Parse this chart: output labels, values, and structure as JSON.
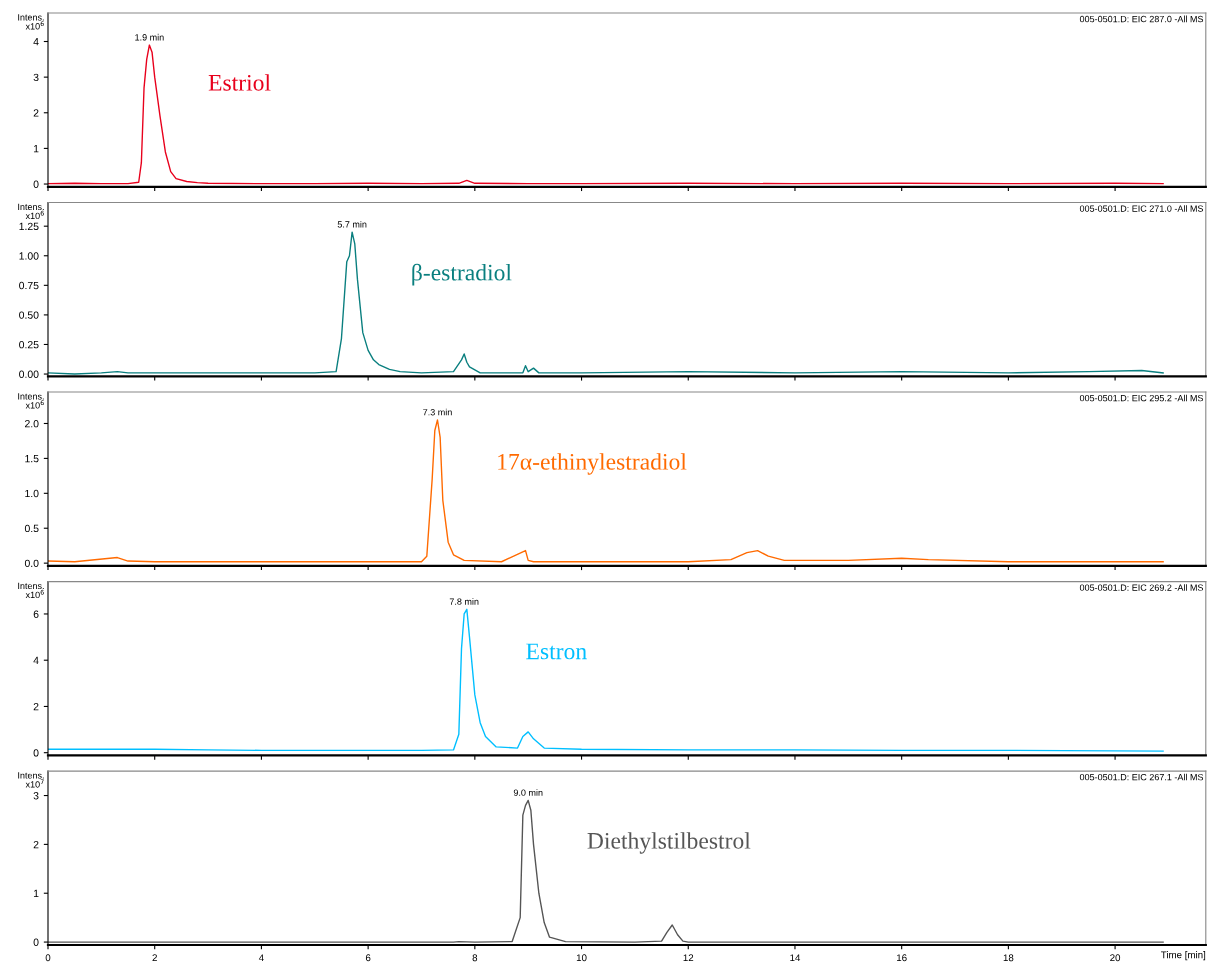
{
  "chart_data": [
    {
      "type": "line",
      "ylabel": "Intens.\nx10$^{6}$",
      "xlim": [
        0,
        21.7
      ],
      "xticks": [
        0,
        2,
        4,
        6,
        8,
        10,
        12,
        14,
        16,
        18,
        20
      ],
      "ylim": [
        -0.08,
        4.8
      ],
      "yticks": [
        0,
        1,
        2,
        3,
        4
      ],
      "tick_labels": "y",
      "grid": false,
      "legend": false,
      "annotations": [
        {
          "text": "1.9 min",
          "x": 1.9,
          "y": 3.9
        },
        "005-0501.D: EIC 287.0 -All MS"
      ],
      "series": [
        {
          "name": "Estriol",
          "color": "#e8001c",
          "x": [
            0,
            0.5,
            1.0,
            1.5,
            1.7,
            1.75,
            1.8,
            1.85,
            1.9,
            1.95,
            2.0,
            2.1,
            2.2,
            2.3,
            2.4,
            2.6,
            2.8,
            3.0,
            4,
            5,
            6,
            7,
            7.7,
            7.85,
            8.0,
            9,
            10,
            12,
            14,
            16,
            18,
            20,
            20.9
          ],
          "values": [
            0.01,
            0.02,
            0.01,
            0.01,
            0.05,
            0.6,
            2.7,
            3.5,
            3.9,
            3.7,
            3.0,
            1.9,
            0.9,
            0.35,
            0.15,
            0.07,
            0.04,
            0.02,
            0.01,
            0.01,
            0.02,
            0.01,
            0.02,
            0.1,
            0.02,
            0.01,
            0.01,
            0.02,
            0.01,
            0.02,
            0.01,
            0.02,
            0.01
          ]
        }
      ]
    },
    {
      "type": "line",
      "ylabel": "Intens.\nx10$^{6}$",
      "xlim": [
        0,
        21.7
      ],
      "xticks": [
        0,
        2,
        4,
        6,
        8,
        10,
        12,
        14,
        16,
        18,
        20
      ],
      "ylim": [
        -0.02,
        1.45
      ],
      "yticks": [
        {
          "value": 0,
          "label": "0.00"
        },
        {
          "value": 0.25,
          "label": "0.25"
        },
        {
          "value": 0.5,
          "label": "0.50"
        },
        {
          "value": 0.75,
          "label": "0.75"
        },
        {
          "value": 1,
          "label": "1.00"
        },
        {
          "value": 1.25,
          "label": "1.25"
        }
      ],
      "tick_labels": "y",
      "grid": false,
      "legend": false,
      "annotations": [
        {
          "text": "5.7 min",
          "x": 5.7,
          "y": 1.2
        },
        "005-0501.D: EIC 271.0 -All MS"
      ],
      "series": [
        {
          "name": "β-estradiol",
          "color": "#0a7f7f",
          "x": [
            0,
            0.5,
            1.0,
            1.3,
            1.5,
            2.0,
            3,
            4,
            5,
            5.4,
            5.5,
            5.6,
            5.65,
            5.7,
            5.75,
            5.8,
            5.9,
            6.0,
            6.1,
            6.2,
            6.4,
            6.6,
            7,
            7.6,
            7.75,
            7.8,
            7.85,
            7.9,
            8.1,
            8.9,
            8.95,
            9.0,
            9.1,
            9.2,
            10,
            12,
            14,
            16,
            18,
            19.5,
            20.5,
            20.9
          ],
          "values": [
            0.01,
            0.0,
            0.01,
            0.02,
            0.01,
            0.01,
            0.01,
            0.01,
            0.01,
            0.02,
            0.3,
            0.95,
            1.0,
            1.2,
            1.1,
            0.8,
            0.35,
            0.2,
            0.12,
            0.08,
            0.04,
            0.02,
            0.01,
            0.02,
            0.12,
            0.17,
            0.1,
            0.06,
            0.01,
            0.01,
            0.07,
            0.02,
            0.05,
            0.01,
            0.01,
            0.02,
            0.01,
            0.02,
            0.01,
            0.02,
            0.03,
            0.01
          ]
        }
      ]
    },
    {
      "type": "line",
      "ylabel": "Intens.\nx10$^{6}$",
      "xlim": [
        0,
        21.7
      ],
      "xticks": [
        0,
        2,
        4,
        6,
        8,
        10,
        12,
        14,
        16,
        18,
        20
      ],
      "ylim": [
        -0.04,
        2.45
      ],
      "yticks": [
        {
          "value": 0,
          "label": "0.0"
        },
        {
          "value": 0.5,
          "label": "0.5"
        },
        {
          "value": 1,
          "label": "1.0"
        },
        {
          "value": 1.5,
          "label": "1.5"
        },
        {
          "value": 2,
          "label": "2.0"
        }
      ],
      "tick_labels": "y",
      "grid": false,
      "legend": false,
      "annotations": [
        {
          "text": "7.3 min",
          "x": 7.3,
          "y": 2.05
        },
        "005-0501.D: EIC 295.2 -All MS"
      ],
      "series": [
        {
          "name": "17α-ethinylestradiol",
          "color": "#ff6a00",
          "x": [
            0,
            0.5,
            1.3,
            1.5,
            2,
            3,
            5,
            7,
            7.1,
            7.2,
            7.25,
            7.3,
            7.35,
            7.4,
            7.5,
            7.6,
            7.8,
            8.5,
            8.95,
            9.0,
            9.1,
            10,
            12,
            12.8,
            13.1,
            13.3,
            13.5,
            13.8,
            15,
            16,
            16.5,
            18,
            20,
            20.9
          ],
          "values": [
            0.03,
            0.02,
            0.08,
            0.03,
            0.02,
            0.02,
            0.02,
            0.02,
            0.1,
            1.2,
            1.9,
            2.05,
            1.8,
            0.9,
            0.3,
            0.12,
            0.04,
            0.02,
            0.18,
            0.04,
            0.02,
            0.02,
            0.02,
            0.05,
            0.15,
            0.18,
            0.1,
            0.04,
            0.04,
            0.07,
            0.05,
            0.02,
            0.02,
            0.02
          ]
        }
      ]
    },
    {
      "type": "line",
      "ylabel": "Intens.\nx10$^{6}$",
      "xlim": [
        0,
        21.7
      ],
      "xticks": [
        0,
        2,
        4,
        6,
        8,
        10,
        12,
        14,
        16,
        18,
        20
      ],
      "ylim": [
        -0.12,
        7.4
      ],
      "yticks": [
        0,
        2,
        4,
        6
      ],
      "tick_labels": "y",
      "grid": false,
      "legend": false,
      "annotations": [
        {
          "text": "7.8 min",
          "x": 7.8,
          "y": 6.2
        },
        "005-0501.D: EIC 269.2 -All MS"
      ],
      "series": [
        {
          "name": "Estron",
          "color": "#00bfff",
          "x": [
            0,
            1,
            2,
            3,
            4,
            5,
            6,
            7,
            7.6,
            7.7,
            7.75,
            7.8,
            7.85,
            7.9,
            8.0,
            8.1,
            8.2,
            8.4,
            8.8,
            8.9,
            9.0,
            9.1,
            9.3,
            10,
            12,
            14,
            16,
            18,
            20,
            20.9
          ],
          "values": [
            0.15,
            0.15,
            0.15,
            0.12,
            0.1,
            0.1,
            0.1,
            0.1,
            0.12,
            0.8,
            4.5,
            6.0,
            6.2,
            5.0,
            2.5,
            1.3,
            0.7,
            0.25,
            0.2,
            0.7,
            0.9,
            0.6,
            0.2,
            0.15,
            0.12,
            0.12,
            0.1,
            0.1,
            0.08,
            0.07
          ]
        }
      ]
    },
    {
      "type": "line",
      "ylabel": "Intens.\nx10$^{7}$",
      "xlabel": "Time [min]",
      "xlim": [
        0,
        21.7
      ],
      "xticks": [
        0,
        2,
        4,
        6,
        8,
        10,
        12,
        14,
        16,
        18,
        20
      ],
      "ylim": [
        -0.06,
        3.5
      ],
      "yticks": [
        0,
        1,
        2,
        3
      ],
      "grid": false,
      "legend": false,
      "annotations": [
        {
          "text": "9.0 min",
          "x": 9.0,
          "y": 2.9
        },
        "005-0501.D: EIC 267.1 -All MS"
      ],
      "series": [
        {
          "name": "Diethylstilbestrol",
          "color": "#555555",
          "x": [
            0,
            4,
            7.6,
            7.7,
            8,
            8.7,
            8.85,
            8.9,
            8.95,
            9.0,
            9.05,
            9.1,
            9.2,
            9.3,
            9.4,
            9.7,
            11,
            11.5,
            11.6,
            11.7,
            11.8,
            11.9,
            12,
            14,
            16,
            18,
            20,
            20.9
          ],
          "values": [
            0,
            0,
            0,
            0.01,
            0,
            0.01,
            0.5,
            2.6,
            2.8,
            2.9,
            2.7,
            2.0,
            1.0,
            0.4,
            0.1,
            0.01,
            0,
            0.02,
            0.2,
            0.35,
            0.15,
            0.02,
            0,
            0,
            0,
            0,
            0,
            0
          ]
        }
      ]
    }
  ]
}
